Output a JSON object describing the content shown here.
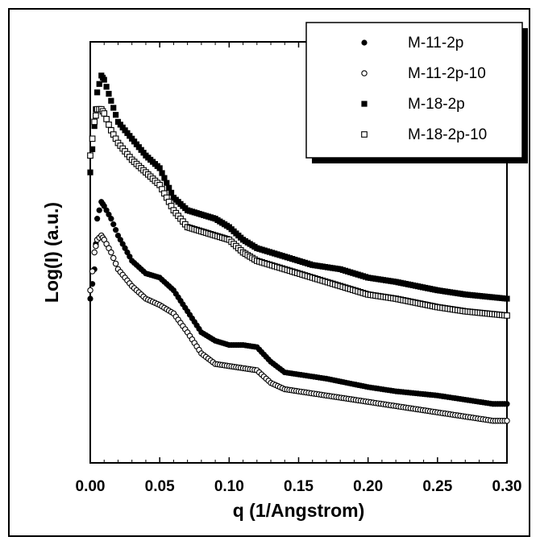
{
  "chart_data": {
    "type": "scatter",
    "title": "",
    "xlabel": "q (1/Angstrom)",
    "ylabel": "Log(I) (a.u.)",
    "xlim": [
      0.0,
      0.3
    ],
    "ylim": [
      0,
      100
    ],
    "y_tick_labels_shown": false,
    "x_ticks": [
      "0.00",
      "0.05",
      "0.10",
      "0.15",
      "0.20",
      "0.25",
      "0.30"
    ],
    "grid": false,
    "legend_position": "top-right",
    "series": [
      {
        "name": "M-11-2p",
        "marker": "filled-circle",
        "points": [
          [
            0.0,
            39
          ],
          [
            0.003,
            46
          ],
          [
            0.005,
            58
          ],
          [
            0.008,
            62
          ],
          [
            0.01,
            61
          ],
          [
            0.015,
            58
          ],
          [
            0.02,
            54
          ],
          [
            0.03,
            48
          ],
          [
            0.04,
            45
          ],
          [
            0.05,
            44
          ],
          [
            0.06,
            41
          ],
          [
            0.07,
            36
          ],
          [
            0.08,
            31
          ],
          [
            0.09,
            29
          ],
          [
            0.1,
            28
          ],
          [
            0.11,
            28
          ],
          [
            0.12,
            27.5
          ],
          [
            0.13,
            24
          ],
          [
            0.14,
            21.5
          ],
          [
            0.15,
            21
          ],
          [
            0.17,
            20
          ],
          [
            0.2,
            18
          ],
          [
            0.22,
            17
          ],
          [
            0.25,
            16
          ],
          [
            0.27,
            15
          ],
          [
            0.29,
            14
          ],
          [
            0.3,
            14
          ]
        ]
      },
      {
        "name": "M-11-2p-10",
        "marker": "open-circle",
        "points": [
          [
            0.0,
            41
          ],
          [
            0.003,
            50
          ],
          [
            0.005,
            53
          ],
          [
            0.008,
            54
          ],
          [
            0.01,
            53
          ],
          [
            0.015,
            50
          ],
          [
            0.02,
            46
          ],
          [
            0.03,
            42
          ],
          [
            0.04,
            39
          ],
          [
            0.05,
            37.5
          ],
          [
            0.06,
            35.5
          ],
          [
            0.07,
            31
          ],
          [
            0.08,
            26
          ],
          [
            0.09,
            23.5
          ],
          [
            0.1,
            23
          ],
          [
            0.11,
            22.5
          ],
          [
            0.12,
            22
          ],
          [
            0.13,
            19
          ],
          [
            0.14,
            17.5
          ],
          [
            0.15,
            17
          ],
          [
            0.17,
            16
          ],
          [
            0.2,
            14.5
          ],
          [
            0.22,
            13.5
          ],
          [
            0.25,
            12
          ],
          [
            0.27,
            11
          ],
          [
            0.29,
            10
          ],
          [
            0.3,
            10
          ]
        ]
      },
      {
        "name": "M-18-2p",
        "marker": "filled-square",
        "points": [
          [
            0.0,
            69
          ],
          [
            0.003,
            80
          ],
          [
            0.005,
            88
          ],
          [
            0.008,
            92
          ],
          [
            0.01,
            91
          ],
          [
            0.015,
            86
          ],
          [
            0.02,
            81
          ],
          [
            0.03,
            77
          ],
          [
            0.04,
            73
          ],
          [
            0.05,
            70
          ],
          [
            0.06,
            63
          ],
          [
            0.07,
            60
          ],
          [
            0.08,
            59
          ],
          [
            0.09,
            58
          ],
          [
            0.1,
            56
          ],
          [
            0.11,
            53
          ],
          [
            0.12,
            51
          ],
          [
            0.14,
            49
          ],
          [
            0.16,
            47
          ],
          [
            0.18,
            46
          ],
          [
            0.2,
            44
          ],
          [
            0.22,
            43
          ],
          [
            0.25,
            41
          ],
          [
            0.27,
            40
          ],
          [
            0.3,
            39
          ]
        ]
      },
      {
        "name": "M-18-2p-10",
        "marker": "open-square",
        "points": [
          [
            0.0,
            73
          ],
          [
            0.003,
            81
          ],
          [
            0.005,
            84
          ],
          [
            0.008,
            84
          ],
          [
            0.01,
            83
          ],
          [
            0.015,
            79
          ],
          [
            0.02,
            76
          ],
          [
            0.03,
            72
          ],
          [
            0.04,
            69
          ],
          [
            0.05,
            66
          ],
          [
            0.06,
            60
          ],
          [
            0.07,
            56
          ],
          [
            0.08,
            55
          ],
          [
            0.09,
            54
          ],
          [
            0.1,
            53
          ],
          [
            0.11,
            50
          ],
          [
            0.12,
            48
          ],
          [
            0.14,
            46
          ],
          [
            0.16,
            44
          ],
          [
            0.18,
            42
          ],
          [
            0.2,
            40
          ],
          [
            0.22,
            39
          ],
          [
            0.25,
            37
          ],
          [
            0.27,
            36
          ],
          [
            0.3,
            35
          ]
        ]
      }
    ]
  },
  "colors": {
    "ink": "#000000",
    "background": "#ffffff"
  }
}
